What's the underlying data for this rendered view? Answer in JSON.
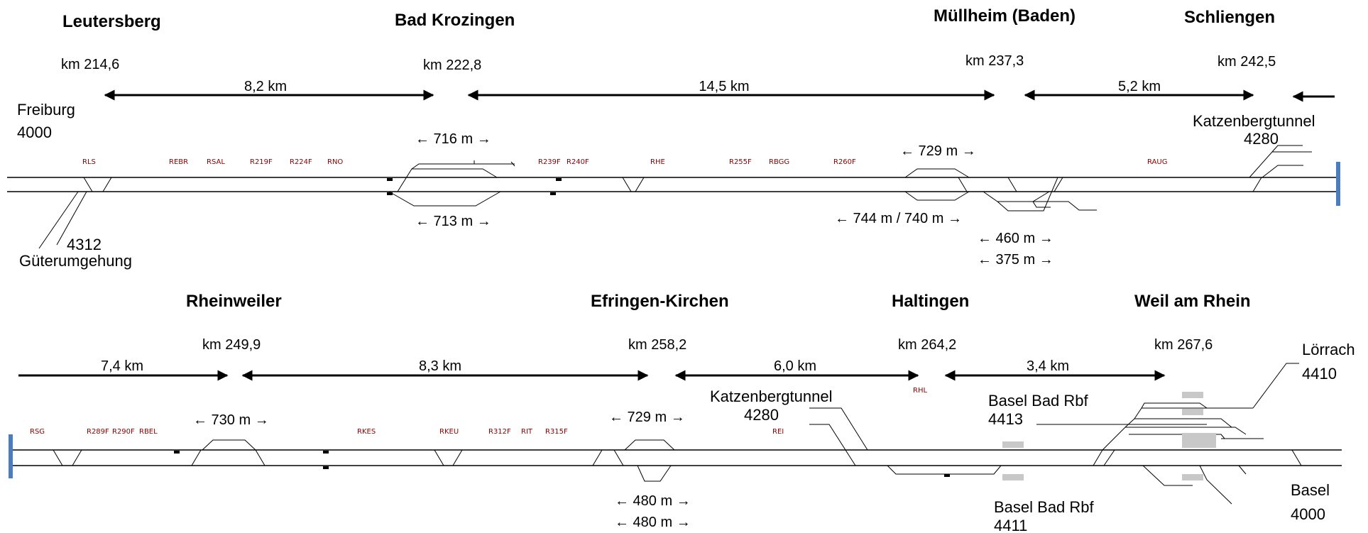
{
  "top": {
    "stations": [
      "Leutersberg",
      "Bad Krozingen",
      "Müllheim (Baden)",
      "Schliengen"
    ],
    "km": [
      "km 214,6",
      "km 222,8",
      "km 237,3",
      "km 242,5"
    ],
    "distances": [
      "8,2 km",
      "14,5 km",
      "5,2 km"
    ],
    "lines": {
      "freiburg_name": "Freiburg",
      "freiburg_num": "4000",
      "gueter_num": "4312",
      "gueter_name": "Güterumgehung",
      "katzen_name": "Katzenbergtunnel",
      "katzen_num": "4280"
    },
    "lengths": [
      "← 716 m →",
      "← 713 m →",
      "← 729 m →",
      "← 744 m / 740 m →",
      "← 460 m →",
      "← 375 m →"
    ],
    "signals": [
      "RLS",
      "REBR",
      "RSAL",
      "R219F",
      "R224F",
      "RNO",
      "R239F",
      "R240F",
      "RHE",
      "R255F",
      "RBGG",
      "R260F",
      "RAUG"
    ]
  },
  "bottom": {
    "stations": [
      "Rheinweiler",
      "Efringen-Kirchen",
      "Haltingen",
      "Weil am Rhein"
    ],
    "km": [
      "km 249,9",
      "km 258,2",
      "km 264,2",
      "km 267,6"
    ],
    "distances": [
      "7,4 km",
      "8,3 km",
      "6,0 km",
      "3,4 km"
    ],
    "lines": {
      "katzen_name": "Katzenbergtunnel",
      "katzen_num": "4280",
      "lorrach_name": "Lörrach",
      "lorrach_num": "4410",
      "basel_rbf_a_name": "Basel Bad Rbf",
      "basel_rbf_a_num": "4413",
      "basel_rbf_b_name": "Basel Bad Rbf",
      "basel_rbf_b_num": "4411",
      "basel_name": "Basel",
      "basel_num": "4000"
    },
    "lengths": [
      "← 730 m →",
      "← 729 m →",
      "← 480 m →",
      "← 480 m →"
    ],
    "signals": [
      "RSG",
      "R289F",
      "R290F",
      "RBEL",
      "RKES",
      "RKEU",
      "R312F",
      "RIT",
      "R315F",
      "REI",
      "RHL"
    ]
  },
  "colors": {
    "endmarker": "#4a7cc0",
    "platform": "#c8c8c8",
    "signal_text": "#8B0000"
  }
}
